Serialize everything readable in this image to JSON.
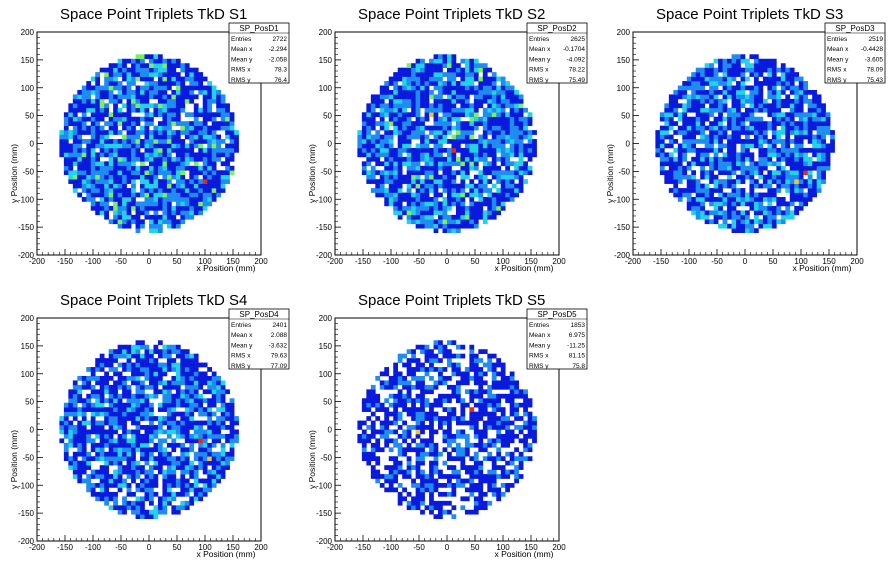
{
  "chart_data": [
    {
      "type": "heatmap",
      "title": "Space Point Triplets TkD S1",
      "xlabel": "x Position (mm)",
      "ylabel": "y Position (mm)",
      "xlim": [
        -200,
        200
      ],
      "ylim": [
        -200,
        200
      ],
      "xticks": [
        "-200",
        "-150",
        "-100",
        "-50",
        "0",
        "50",
        "100",
        "150",
        "200"
      ],
      "yticks": [
        "-200",
        "-150",
        "-100",
        "-50",
        "0",
        "50",
        "100",
        "150",
        "200"
      ],
      "stats": {
        "name": "SP_PosD1",
        "rows": [
          [
            "Entries",
            "2722"
          ],
          [
            "Mean x",
            "-2.294"
          ],
          [
            "Mean y",
            "-2.058"
          ],
          [
            "RMS x",
            "78.3"
          ],
          [
            "RMS y",
            "76.4"
          ]
        ]
      },
      "hot_cells": [
        [
          100,
          -65,
          4
        ]
      ],
      "seed": 11,
      "density": 1.0
    },
    {
      "type": "heatmap",
      "title": "Space Point Triplets TkD S2",
      "xlabel": "x Position (mm)",
      "ylabel": "y Position (mm)",
      "xlim": [
        -200,
        200
      ],
      "ylim": [
        -200,
        200
      ],
      "xticks": [
        "-200",
        "-150",
        "-100",
        "-50",
        "0",
        "50",
        "100",
        "150",
        "200"
      ],
      "yticks": [
        "-200",
        "-150",
        "-100",
        "-50",
        "0",
        "50",
        "100",
        "150",
        "200"
      ],
      "stats": {
        "name": "SP_PosD2",
        "rows": [
          [
            "Entries",
            "2625"
          ],
          [
            "Mean x",
            "-0.1704"
          ],
          [
            "Mean y",
            "-4.092"
          ],
          [
            "RMS x",
            "78.22"
          ],
          [
            "RMS y",
            "75.49"
          ]
        ]
      },
      "hot_cells": [
        [
          15,
          -10,
          4
        ],
        [
          -30,
          55,
          3
        ]
      ],
      "seed": 23,
      "density": 0.98
    },
    {
      "type": "heatmap",
      "title": "Space Point Triplets TkD S3",
      "xlabel": "x Position (mm)",
      "ylabel": "y Position (mm)",
      "xlim": [
        -200,
        200
      ],
      "ylim": [
        -200,
        200
      ],
      "xticks": [
        "-200",
        "-150",
        "-100",
        "-50",
        "0",
        "50",
        "100",
        "150",
        "200"
      ],
      "yticks": [
        "-200",
        "-150",
        "-100",
        "-50",
        "0",
        "50",
        "100",
        "150",
        "200"
      ],
      "stats": {
        "name": "SP_PosD3",
        "rows": [
          [
            "Entries",
            "2519"
          ],
          [
            "Mean x",
            "-0.4428"
          ],
          [
            "Mean y",
            "-3.605"
          ],
          [
            "RMS x",
            "78.09"
          ],
          [
            "RMS y",
            "75.43"
          ]
        ]
      },
      "hot_cells": [
        [
          110,
          -55,
          4
        ],
        [
          95,
          -70,
          3
        ]
      ],
      "seed": 37,
      "density": 0.95
    },
    {
      "type": "heatmap",
      "title": "Space Point Triplets TkD S4",
      "xlabel": "x Position (mm)",
      "ylabel": "y Position (mm)",
      "xlim": [
        -200,
        200
      ],
      "ylim": [
        -200,
        200
      ],
      "xticks": [
        "-200",
        "-150",
        "-100",
        "-50",
        "0",
        "50",
        "100",
        "150",
        "200"
      ],
      "yticks": [
        "-200",
        "-150",
        "-100",
        "-50",
        "0",
        "50",
        "100",
        "150",
        "200"
      ],
      "stats": {
        "name": "SP_PosD4",
        "rows": [
          [
            "Entries",
            "2401"
          ],
          [
            "Mean x",
            "2.088"
          ],
          [
            "Mean y",
            "-3.632"
          ],
          [
            "RMS x",
            "79.63"
          ],
          [
            "RMS y",
            "77.09"
          ]
        ]
      },
      "hot_cells": [
        [
          95,
          -20,
          4
        ],
        [
          105,
          -55,
          3
        ]
      ],
      "seed": 51,
      "density": 0.92
    },
    {
      "type": "heatmap",
      "title": "Space Point Triplets TkD S5",
      "xlabel": "x Position (mm)",
      "ylabel": "y Position (mm)",
      "xlim": [
        -200,
        200
      ],
      "ylim": [
        -200,
        200
      ],
      "xticks": [
        "-200",
        "-150",
        "-100",
        "-50",
        "0",
        "50",
        "100",
        "150",
        "200"
      ],
      "yticks": [
        "-200",
        "-150",
        "-100",
        "-50",
        "0",
        "50",
        "100",
        "150",
        "200"
      ],
      "stats": {
        "name": "SP_PosD5",
        "rows": [
          [
            "Entries",
            "1853"
          ],
          [
            "Mean x",
            "6.975"
          ],
          [
            "Mean y",
            "-11.25"
          ],
          [
            "RMS x",
            "81.15"
          ],
          [
            "RMS y",
            "75.8"
          ]
        ]
      },
      "hot_cells": [
        [
          40,
          35,
          4
        ],
        [
          -55,
          -5,
          3
        ]
      ],
      "seed": 67,
      "density": 0.72
    }
  ],
  "palette": [
    "#ffffff",
    "#0a1adc",
    "#1e8cf0",
    "#22d2e6",
    "#7af05a",
    "#f0c828",
    "#e82a14"
  ]
}
